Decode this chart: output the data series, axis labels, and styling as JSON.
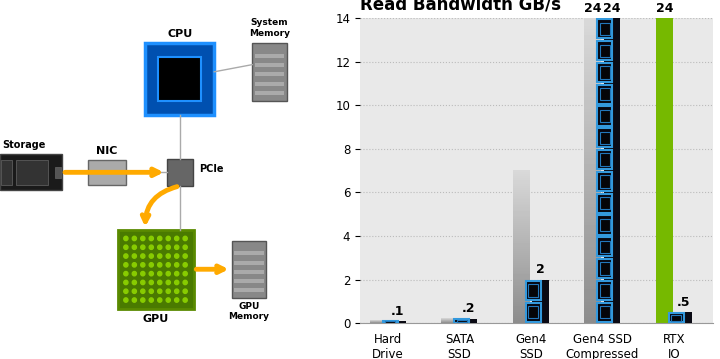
{
  "title": "Read Bandwidth GB/s",
  "categories": [
    "Hard\nDrive",
    "SATA\nSSD",
    "Gen4\nSSD",
    "Gen4 SSD\nCompressed",
    "RTX\nIO"
  ],
  "gray_values": [
    0.1,
    0.2,
    7.0,
    14.0,
    0.0
  ],
  "icon_values": [
    0.1,
    0.2,
    2.0,
    14.0,
    0.5
  ],
  "green_value": 14.0,
  "icon_counts": [
    1,
    1,
    2,
    14,
    1
  ],
  "gray_labels": [
    "",
    "",
    "",
    "",
    ""
  ],
  "icon_labels": [
    ".1",
    ".2",
    "2",
    "24",
    ".5"
  ],
  "top_labels": [
    "",
    "",
    "",
    "24",
    "24"
  ],
  "ylim": [
    0,
    14
  ],
  "yticks": [
    0,
    2,
    4,
    6,
    8,
    10,
    12,
    14
  ],
  "bg_color": "#e9e9e9",
  "title_fontsize": 12,
  "label_fontsize": 9,
  "tick_fontsize": 8.5
}
